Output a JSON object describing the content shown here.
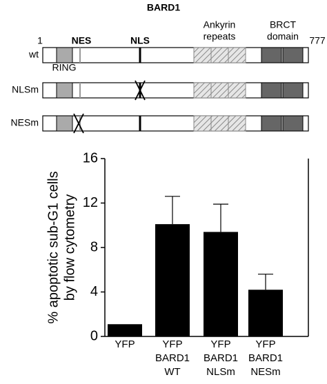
{
  "diagram": {
    "title": "BARD1",
    "start": "1",
    "end": "777",
    "nes": "NES",
    "nls": "NLS",
    "ankyrin": [
      "Ankyrin",
      "repeats"
    ],
    "brct": [
      "BRCT",
      "domain"
    ],
    "ring": "RING",
    "rows": [
      "wt",
      "NLSm",
      "NESm"
    ]
  },
  "chart_data": {
    "type": "bar",
    "y_label": [
      "% apoptotic sub-G1 cells",
      "by flow cytometry"
    ],
    "categories": [
      [
        "YFP"
      ],
      [
        "YFP",
        "BARD1",
        "WT"
      ],
      [
        "YFP",
        "BARD1",
        "NLSm"
      ],
      [
        "YFP",
        "BARD1",
        "NESm"
      ]
    ],
    "values": [
      1.1,
      10.1,
      9.4,
      4.2
    ],
    "errors": [
      0,
      2.5,
      2.5,
      1.4
    ],
    "color": "#000000",
    "ylim": [
      0,
      16
    ],
    "yticks": [
      0,
      4,
      8,
      12,
      16
    ]
  }
}
